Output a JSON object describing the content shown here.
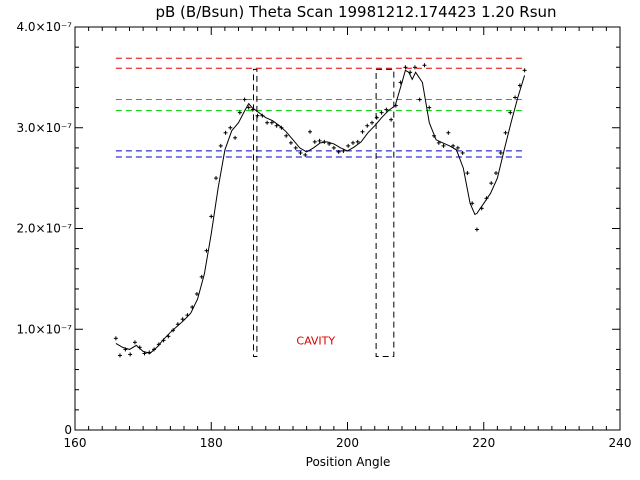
{
  "chart_data": {
    "type": "scatter",
    "title": "pB (B/Bsun) Theta Scan 19981212.174423 1.20 Rsun",
    "xlabel": "Position Angle",
    "ylabel": "",
    "xlim": [
      160,
      240
    ],
    "ylim": [
      0,
      4e-07
    ],
    "grid": false,
    "x_ticks": [
      160,
      180,
      200,
      220,
      240
    ],
    "x_tick_labels": [
      "160",
      "180",
      "200",
      "220",
      "240"
    ],
    "y_ticks": [
      0,
      1e-07,
      2e-07,
      3e-07,
      4e-07
    ],
    "y_tick_labels": [
      "0",
      "1.0×10⁻⁷",
      "2.0×10⁻⁷",
      "3.0×10⁻⁷",
      "4.0×10⁻⁷"
    ],
    "series": [
      {
        "style": "points",
        "x": [
          166.0,
          166.6,
          167.4,
          168.1,
          168.8,
          169.5,
          170.2,
          170.9,
          171.6,
          172.3,
          173.0,
          173.7,
          174.4,
          175.1,
          175.8,
          176.5,
          177.2,
          177.9,
          178.6,
          179.3,
          180.0,
          180.7,
          181.4,
          182.1,
          182.8,
          183.5,
          184.2,
          184.9,
          185.5,
          186.1,
          186.8,
          187.5,
          188.2,
          188.9,
          189.6,
          190.3,
          191.0,
          191.7,
          192.4,
          193.1,
          193.8,
          194.5,
          195.2,
          195.9,
          196.6,
          197.3,
          198.0,
          198.7,
          199.4,
          200.1,
          200.8,
          201.5,
          202.2,
          202.9,
          203.6,
          204.3,
          205.0,
          205.7,
          206.4,
          207.1,
          207.8,
          208.5,
          209.2,
          209.9,
          210.6,
          211.3,
          212.0,
          212.7,
          213.4,
          214.1,
          214.8,
          215.5,
          216.2,
          216.9,
          217.6,
          218.3,
          219.0,
          219.7,
          220.4,
          221.1,
          221.8,
          222.5,
          223.2,
          223.9,
          224.6,
          225.3,
          226.0
        ],
        "y": [
          9.1e-08,
          7.4e-08,
          8e-08,
          7.5e-08,
          8.7e-08,
          8.2e-08,
          7.6e-08,
          7.7e-08,
          8e-08,
          8.5e-08,
          8.9e-08,
          9.3e-08,
          9.9e-08,
          1.05e-07,
          1.1e-07,
          1.14e-07,
          1.22e-07,
          1.35e-07,
          1.52e-07,
          1.78e-07,
          2.12e-07,
          2.5e-07,
          2.82e-07,
          2.95e-07,
          3e-07,
          2.9e-07,
          3.15e-07,
          3.28e-07,
          3.2e-07,
          3.18e-07,
          3.12e-07,
          3.12e-07,
          3.05e-07,
          3.05e-07,
          3.02e-07,
          3e-07,
          2.92e-07,
          2.85e-07,
          2.8e-07,
          2.75e-07,
          2.73e-07,
          2.96e-07,
          2.86e-07,
          2.87e-07,
          2.86e-07,
          2.84e-07,
          2.8e-07,
          2.76e-07,
          2.77e-07,
          2.82e-07,
          2.85e-07,
          2.86e-07,
          2.96e-07,
          3.02e-07,
          3.05e-07,
          3.1e-07,
          3.15e-07,
          3.18e-07,
          3.08e-07,
          3.22e-07,
          3.45e-07,
          3.6e-07,
          3.55e-07,
          3.6e-07,
          3.28e-07,
          3.62e-07,
          3.2e-07,
          2.92e-07,
          2.85e-07,
          2.82e-07,
          2.95e-07,
          2.82e-07,
          2.8e-07,
          2.75e-07,
          2.55e-07,
          2.25e-07,
          1.99e-07,
          2.2e-07,
          2.3e-07,
          2.45e-07,
          2.55e-07,
          2.75e-07,
          2.95e-07,
          3.15e-07,
          3.3e-07,
          3.42e-07,
          3.57e-07
        ]
      },
      {
        "style": "line",
        "x": [
          166,
          167,
          168,
          169,
          170,
          171,
          172,
          173,
          174,
          175,
          176,
          177,
          178,
          179,
          180,
          181,
          182,
          183,
          184,
          185,
          185.5,
          186,
          187,
          188,
          189,
          190,
          191,
          192,
          193,
          194,
          195,
          196,
          197,
          198,
          199,
          200,
          201,
          202,
          203,
          204,
          205,
          206,
          207,
          208,
          208.5,
          209,
          209.5,
          210,
          210.5,
          211,
          212,
          213,
          214,
          215,
          216,
          217,
          218,
          218.7,
          219,
          220,
          221,
          222,
          223,
          224,
          225,
          226
        ],
        "y": [
          8.6e-08,
          8.2e-08,
          8e-08,
          8.4e-08,
          7.8e-08,
          7.6e-08,
          8.2e-08,
          9e-08,
          9.7e-08,
          1.03e-07,
          1.09e-07,
          1.16e-07,
          1.3e-07,
          1.55e-07,
          1.95e-07,
          2.4e-07,
          2.78e-07,
          2.97e-07,
          3.05e-07,
          3.18e-07,
          3.24e-07,
          3.2e-07,
          3.15e-07,
          3.1e-07,
          3.07e-07,
          3.02e-07,
          2.96e-07,
          2.88e-07,
          2.8e-07,
          2.76e-07,
          2.8e-07,
          2.85e-07,
          2.86e-07,
          2.84e-07,
          2.8e-07,
          2.77e-07,
          2.81e-07,
          2.86e-07,
          2.95e-07,
          3.02e-07,
          3.1e-07,
          3.17e-07,
          3.22e-07,
          3.45e-07,
          3.57e-07,
          3.55e-07,
          3.48e-07,
          3.55e-07,
          3.5e-07,
          3.45e-07,
          3.05e-07,
          2.88e-07,
          2.85e-07,
          2.82e-07,
          2.78e-07,
          2.6e-07,
          2.25e-07,
          2.14e-07,
          2.15e-07,
          2.25e-07,
          2.35e-07,
          2.5e-07,
          2.78e-07,
          3.05e-07,
          3.3e-07,
          3.52e-07
        ]
      }
    ],
    "reference_lines": [
      {
        "color": "#dd0000",
        "y": 3.69e-07,
        "x_range": [
          166,
          226
        ]
      },
      {
        "color": "#dd0000",
        "y": 3.59e-07,
        "x_range": [
          166,
          226
        ]
      },
      {
        "color": "#00cc00",
        "y": 3.28e-07,
        "x_range": [
          166,
          226
        ]
      },
      {
        "color": "#00cc00",
        "y": 3.17e-07,
        "x_range": [
          166,
          226
        ]
      },
      {
        "color": "#0000cc",
        "y": 2.77e-07,
        "x_range": [
          166,
          226
        ]
      },
      {
        "color": "#0000cc",
        "y": 2.71e-07,
        "x_range": [
          166,
          226
        ]
      }
    ],
    "boxes": [
      {
        "x_range": [
          186.2,
          186.7
        ],
        "y_range": [
          7.3e-08,
          3.58e-07
        ],
        "color": "#000000"
      },
      {
        "x_range": [
          204.2,
          206.8
        ],
        "y_range": [
          7.3e-08,
          3.58e-07
        ],
        "color": "#000000"
      }
    ],
    "annotations": [
      {
        "text": "CAVITY",
        "x": 192.5,
        "y": 8.5e-08,
        "color": "#dd0000"
      }
    ]
  }
}
